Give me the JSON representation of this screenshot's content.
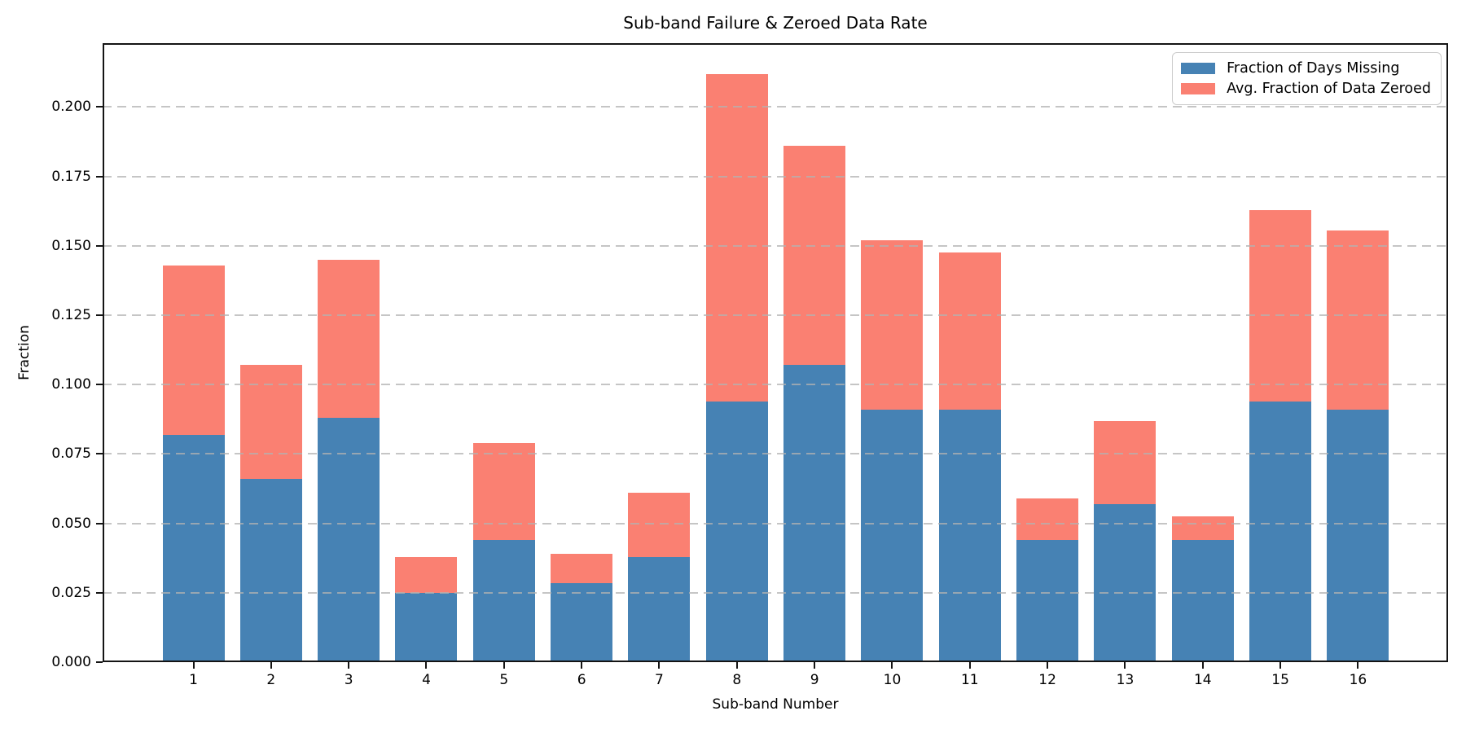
{
  "title": "Sub-band Failure & Zeroed Data Rate",
  "chart_data": {
    "type": "bar",
    "stacked": true,
    "title": "Sub-band Failure & Zeroed Data Rate",
    "xlabel": "Sub-band Number",
    "ylabel": "Fraction",
    "categories": [
      "1",
      "2",
      "3",
      "4",
      "5",
      "6",
      "7",
      "8",
      "9",
      "10",
      "11",
      "12",
      "13",
      "14",
      "15",
      "16"
    ],
    "series": [
      {
        "name": "Fraction of Days Missing",
        "color": "#4682B4",
        "values": [
          0.082,
          0.066,
          0.088,
          0.025,
          0.044,
          0.0285,
          0.038,
          0.094,
          0.107,
          0.091,
          0.091,
          0.044,
          0.057,
          0.044,
          0.094,
          0.091
        ]
      },
      {
        "name": "Avg. Fraction of Data Zeroed",
        "color": "#FA8072",
        "values": [
          0.061,
          0.041,
          0.057,
          0.013,
          0.035,
          0.0105,
          0.023,
          0.118,
          0.079,
          0.061,
          0.0565,
          0.015,
          0.03,
          0.0085,
          0.069,
          0.0645
        ]
      }
    ],
    "stack_totals": [
      0.143,
      0.107,
      0.145,
      0.038,
      0.079,
      0.039,
      0.061,
      0.212,
      0.186,
      0.152,
      0.1475,
      0.059,
      0.087,
      0.0525,
      0.163,
      0.1555
    ],
    "ylim": [
      0.0,
      0.223
    ],
    "yticks": [
      0.0,
      0.025,
      0.05,
      0.075,
      0.1,
      0.125,
      0.15,
      0.175,
      0.2
    ],
    "ytick_labels": [
      "0.000",
      "0.025",
      "0.050",
      "0.075",
      "0.100",
      "0.125",
      "0.150",
      "0.175",
      "0.200"
    ],
    "grid": "horizontal dashed, light gray, drawn above bars",
    "legend_position": "upper right",
    "axis_color": "#141414",
    "grid_color": "#b2b2b2",
    "background_color": "#ffffff"
  }
}
